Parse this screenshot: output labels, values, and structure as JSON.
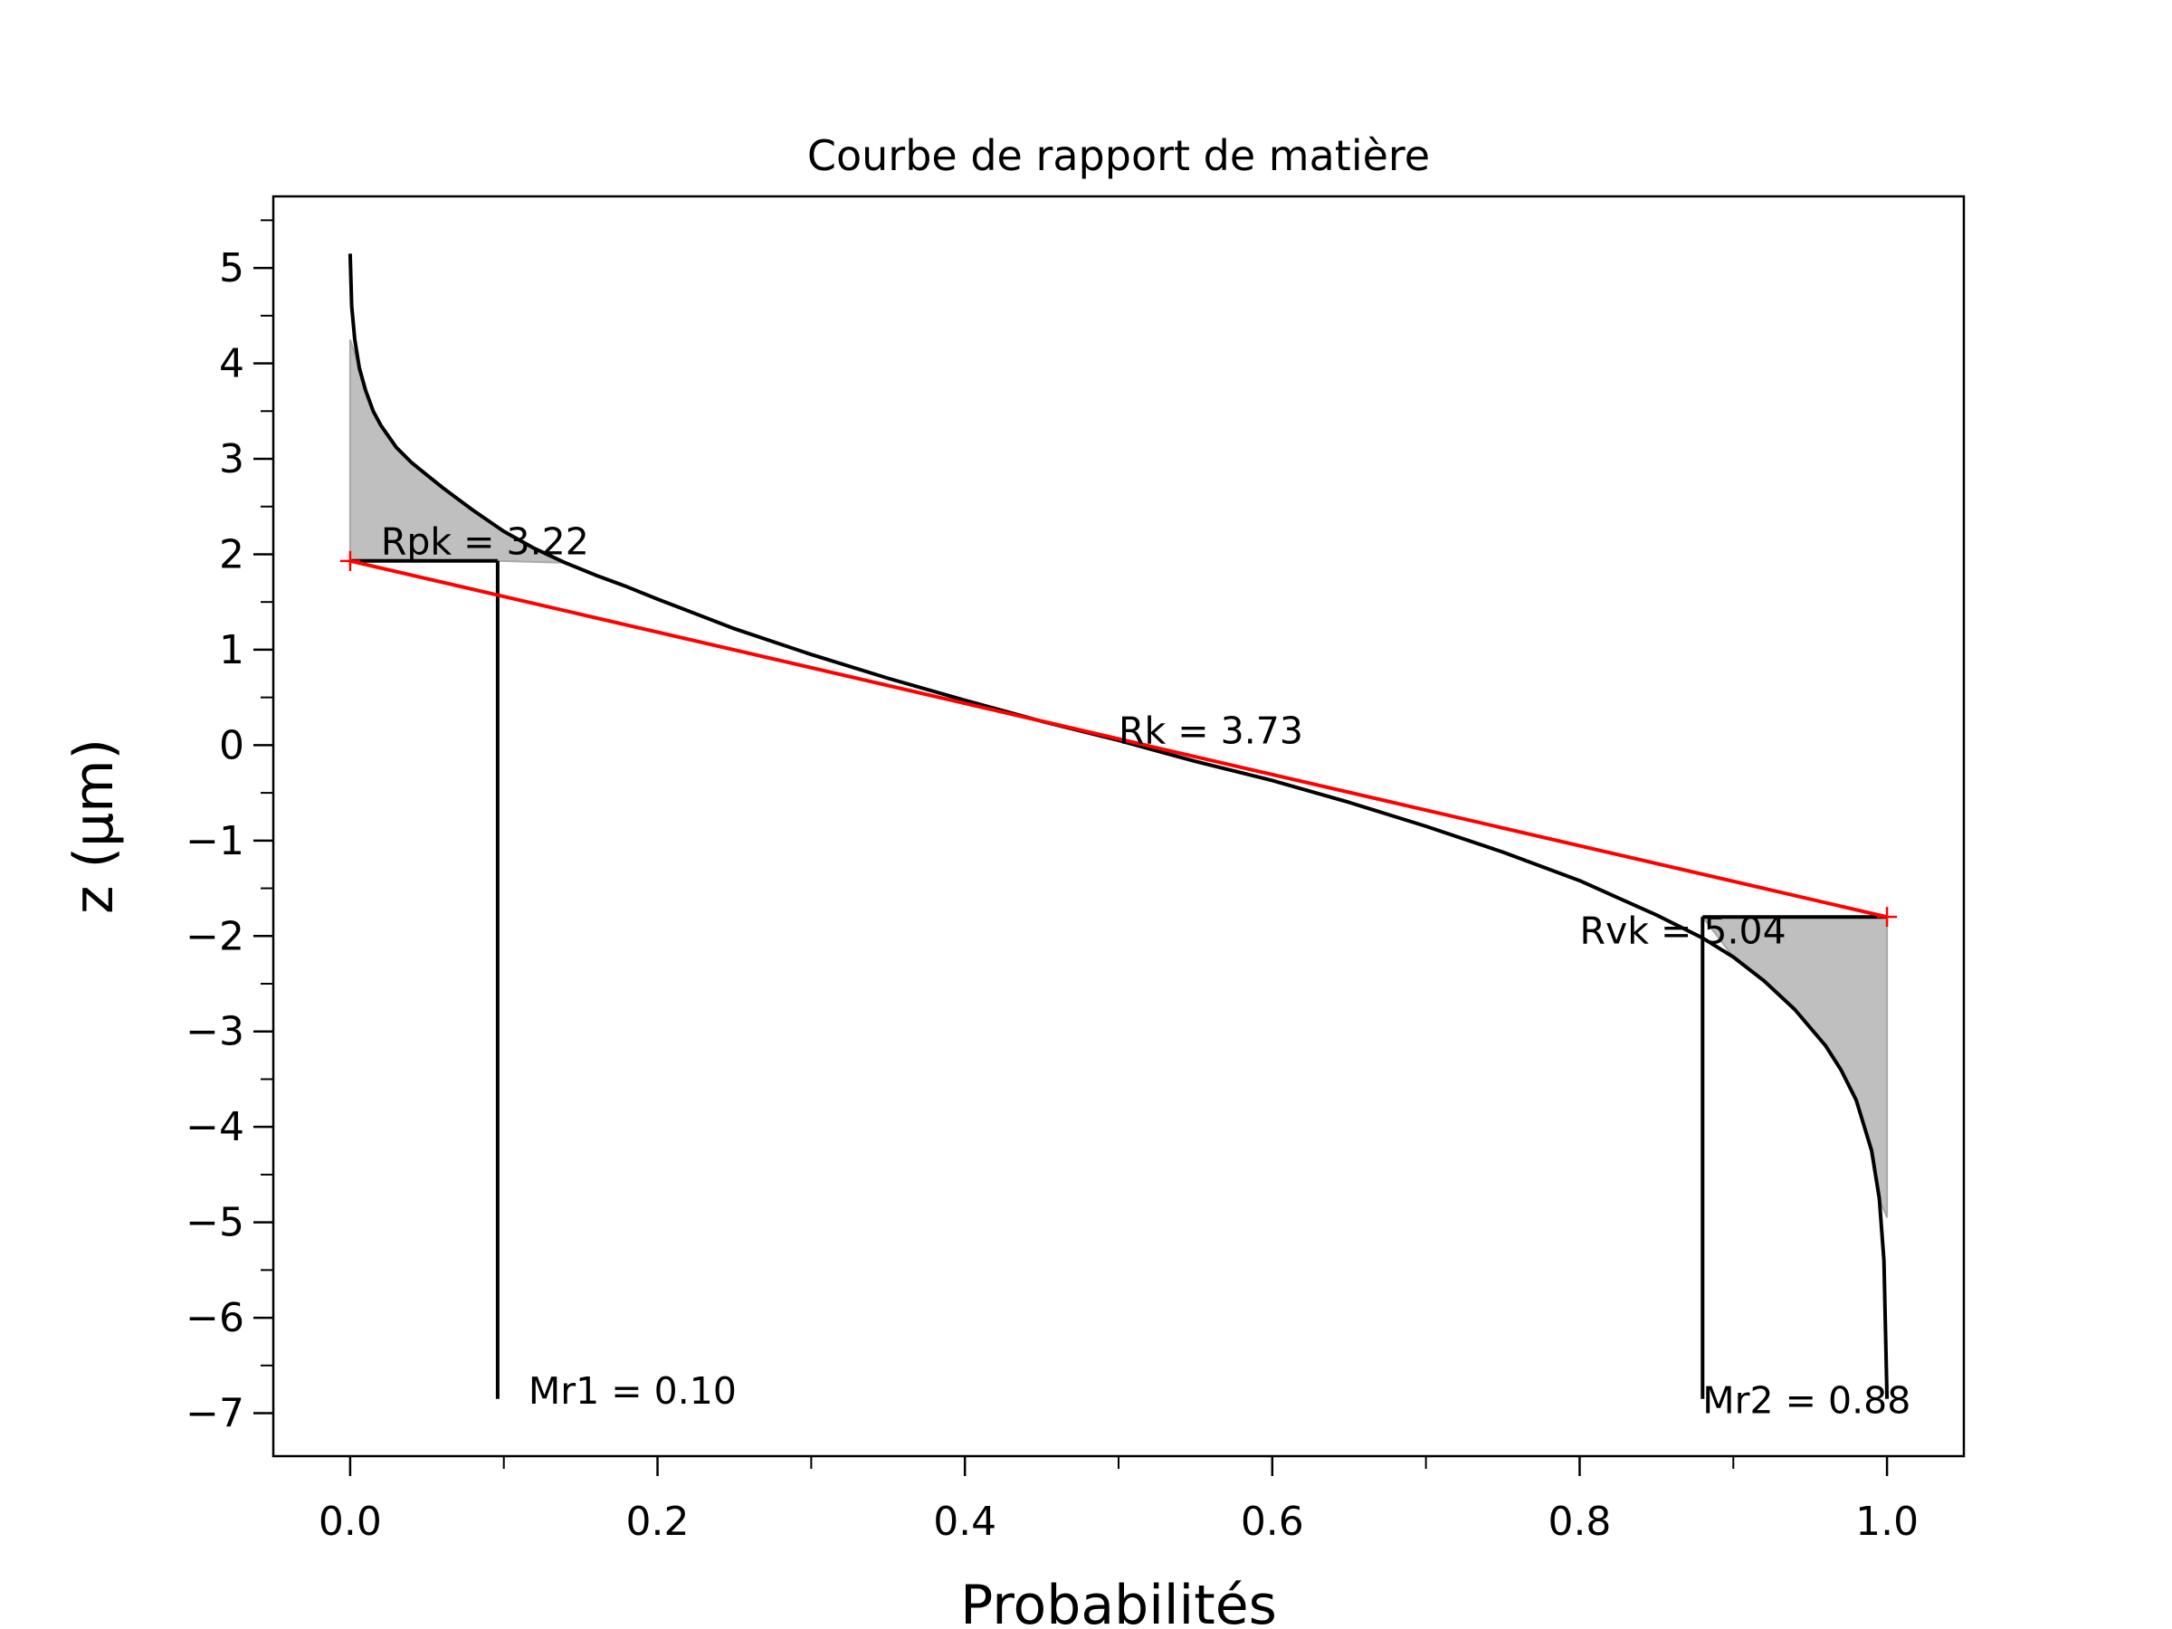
{
  "chart_data": {
    "type": "line",
    "title": "Courbe de rapport de matière",
    "xlabel": "Probabilités",
    "ylabel": "z (µm)",
    "xlim": [
      -0.05,
      1.05
    ],
    "ylim": [
      -7.45,
      5.75
    ],
    "grid": false,
    "x_major_ticks": [
      0.0,
      0.2,
      0.4,
      0.6,
      0.8,
      1.0
    ],
    "x_tick_labels": [
      "0.0",
      "0.2",
      "0.4",
      "0.6",
      "0.8",
      "1.0"
    ],
    "x_minor_ticks": [
      0.1,
      0.3,
      0.5,
      0.7,
      0.9
    ],
    "y_major_ticks": [
      5,
      4,
      3,
      2,
      1,
      0,
      -1,
      -2,
      -3,
      -4,
      -5,
      -6,
      -7
    ],
    "y_tick_labels": [
      "5",
      "4",
      "3",
      "2",
      "1",
      "0",
      "−1",
      "−2",
      "−3",
      "−4",
      "−5",
      "−6",
      "−7"
    ],
    "y_minor_ticks": [
      5.5,
      4.5,
      3.5,
      2.5,
      1.5,
      0.5,
      -0.5,
      -1.5,
      -2.5,
      -3.5,
      -4.5,
      -5.5,
      -6.5
    ],
    "series": [
      {
        "color": "#000000",
        "points": [
          [
            0.0,
            5.15
          ],
          [
            0.001,
            4.6
          ],
          [
            0.003,
            4.25
          ],
          [
            0.006,
            3.95
          ],
          [
            0.01,
            3.72
          ],
          [
            0.015,
            3.5
          ],
          [
            0.02,
            3.35
          ],
          [
            0.03,
            3.12
          ],
          [
            0.04,
            2.96
          ],
          [
            0.05,
            2.83
          ],
          [
            0.06,
            2.7
          ],
          [
            0.07,
            2.58
          ],
          [
            0.08,
            2.46
          ],
          [
            0.09,
            2.35
          ],
          [
            0.1,
            2.24
          ],
          [
            0.12,
            2.06
          ],
          [
            0.14,
            1.91
          ],
          [
            0.16,
            1.78
          ],
          [
            0.18,
            1.66
          ],
          [
            0.2,
            1.53
          ],
          [
            0.25,
            1.22
          ],
          [
            0.3,
            0.95
          ],
          [
            0.35,
            0.7
          ],
          [
            0.4,
            0.47
          ],
          [
            0.45,
            0.25
          ],
          [
            0.5,
            0.05
          ],
          [
            0.55,
            -0.17
          ],
          [
            0.6,
            -0.37
          ],
          [
            0.65,
            -0.6
          ],
          [
            0.7,
            -0.85
          ],
          [
            0.75,
            -1.12
          ],
          [
            0.8,
            -1.42
          ],
          [
            0.85,
            -1.78
          ],
          [
            0.88,
            -2.02
          ],
          [
            0.9,
            -2.22
          ],
          [
            0.92,
            -2.47
          ],
          [
            0.94,
            -2.77
          ],
          [
            0.96,
            -3.15
          ],
          [
            0.97,
            -3.4
          ],
          [
            0.98,
            -3.72
          ],
          [
            0.99,
            -4.25
          ],
          [
            0.995,
            -4.75
          ],
          [
            0.998,
            -5.4
          ],
          [
            1.0,
            -6.85
          ]
        ]
      },
      {
        "color": "#ff0000",
        "points": [
          [
            0.0,
            1.93
          ],
          [
            1.0,
            -1.8
          ]
        ]
      }
    ],
    "markers": [
      {
        "x": 0.0,
        "y": 1.93,
        "color": "#ff0000",
        "symbol": "+"
      },
      {
        "x": 1.0,
        "y": -1.8,
        "color": "#ff0000",
        "symbol": "+"
      }
    ],
    "shaded_regions": [
      {
        "fill": "#bfbfbf",
        "points": [
          [
            0.0,
            4.25
          ],
          [
            0.006,
            3.95
          ],
          [
            0.01,
            3.72
          ],
          [
            0.015,
            3.5
          ],
          [
            0.02,
            3.35
          ],
          [
            0.03,
            3.12
          ],
          [
            0.04,
            2.96
          ],
          [
            0.05,
            2.83
          ],
          [
            0.06,
            2.7
          ],
          [
            0.07,
            2.58
          ],
          [
            0.08,
            2.46
          ],
          [
            0.09,
            2.35
          ],
          [
            0.1,
            2.24
          ],
          [
            0.12,
            2.06
          ],
          [
            0.14,
            1.91
          ],
          [
            0.096,
            1.93
          ],
          [
            0.0,
            1.93
          ]
        ]
      },
      {
        "fill": "#bfbfbf",
        "points": [
          [
            0.88,
            -1.8
          ],
          [
            0.9,
            -2.22
          ],
          [
            0.92,
            -2.47
          ],
          [
            0.94,
            -2.77
          ],
          [
            0.96,
            -3.15
          ],
          [
            0.97,
            -3.4
          ],
          [
            0.98,
            -3.72
          ],
          [
            0.99,
            -4.25
          ],
          [
            0.995,
            -4.75
          ],
          [
            1.0,
            -4.95
          ],
          [
            1.0,
            -1.8
          ]
        ]
      }
    ],
    "reference_lines": [
      {
        "points": [
          [
            0.0,
            1.93
          ],
          [
            0.096,
            1.93
          ]
        ]
      },
      {
        "points": [
          [
            0.096,
            1.93
          ],
          [
            0.096,
            -6.85
          ]
        ]
      },
      {
        "points": [
          [
            0.88,
            -1.8
          ],
          [
            1.0,
            -1.8
          ]
        ]
      },
      {
        "points": [
          [
            0.88,
            -1.8
          ],
          [
            0.88,
            -6.85
          ]
        ]
      }
    ],
    "annotations": [
      {
        "text": "Rpk = 3.22",
        "x": 0.02,
        "y": 2.0
      },
      {
        "text": "Rk = 3.73",
        "x": 0.5,
        "y": 0.02
      },
      {
        "text": "Rvk = 5.04",
        "x": 0.8,
        "y": -2.08
      },
      {
        "text": "Mr1 = 0.10",
        "x": 0.116,
        "y": -6.9
      },
      {
        "text": "Mr2 = 0.88",
        "x": 0.88,
        "y": -7.0
      }
    ]
  }
}
